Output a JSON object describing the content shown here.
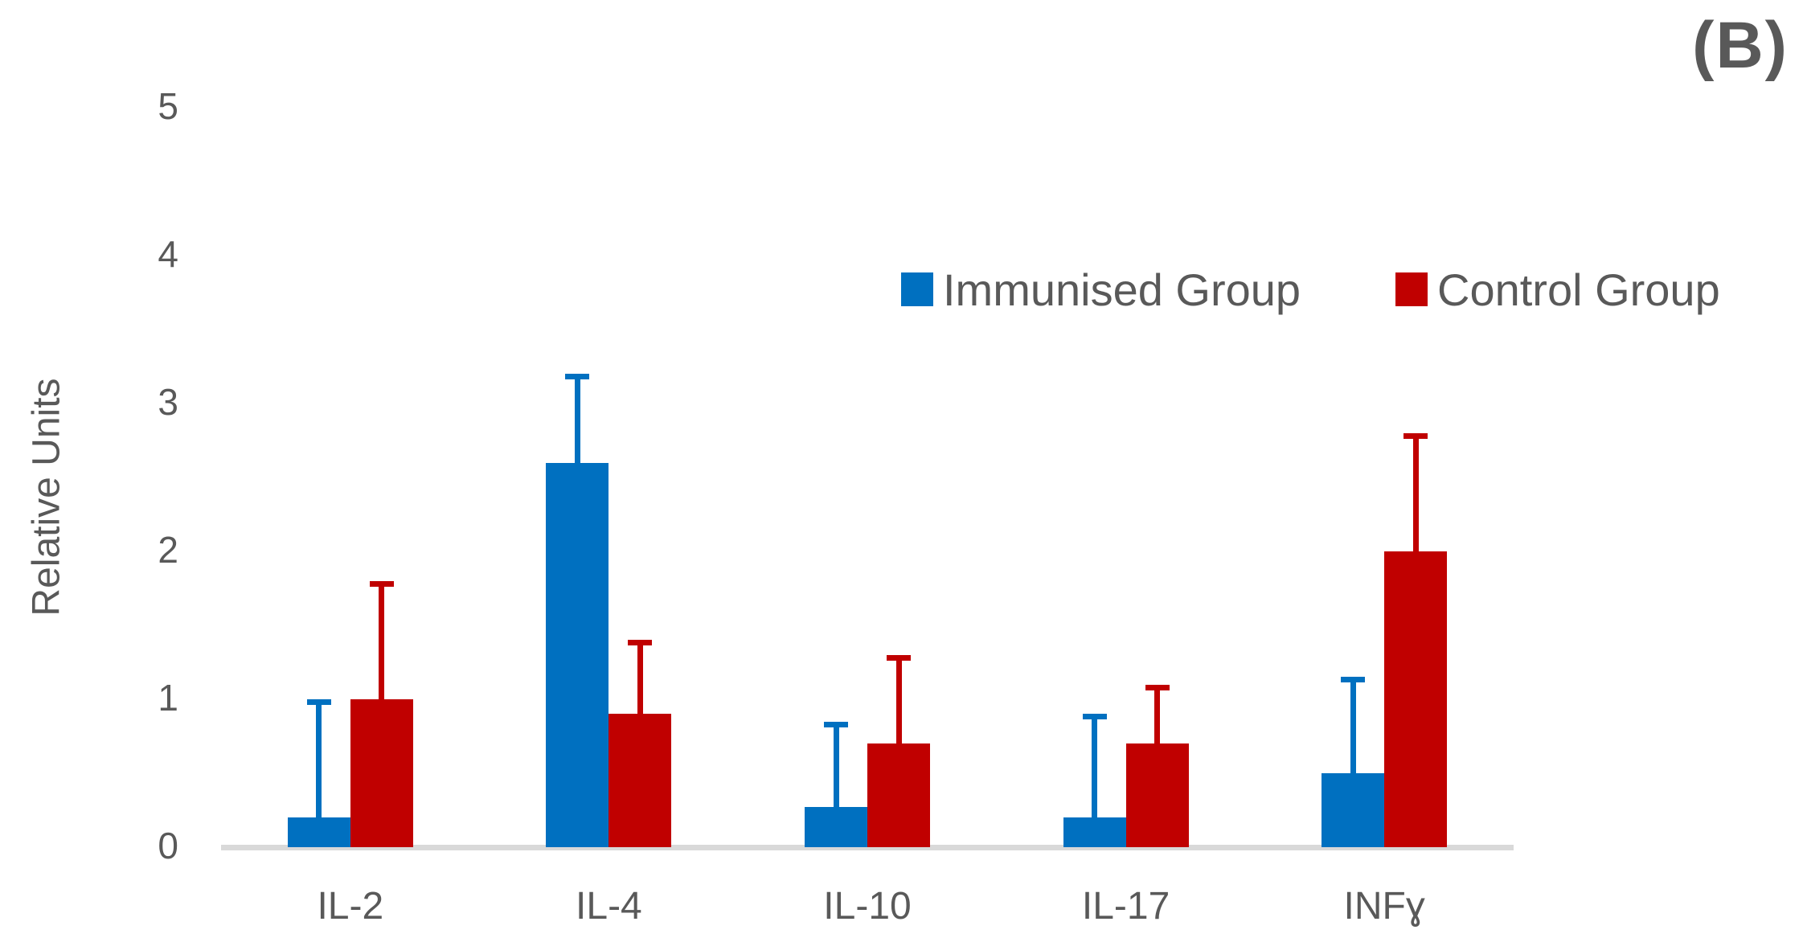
{
  "figure": {
    "panel_label": "(B)"
  },
  "chart_data": {
    "type": "bar",
    "title": "(B)",
    "xlabel": "",
    "ylabel": "Relative Units",
    "ylim": [
      0,
      5
    ],
    "yticks": [
      0,
      1,
      2,
      3,
      4,
      5
    ],
    "grid": false,
    "legend_position": "top-right-inside",
    "categories": [
      "IL-2",
      "IL-4",
      "IL-10",
      "IL-17",
      "INFɣ"
    ],
    "series": [
      {
        "name": "Immunised Group",
        "color": "#0070C0",
        "values": [
          0.2,
          2.6,
          0.27,
          0.2,
          0.5
        ],
        "error_bar_top": [
          1.0,
          3.2,
          0.85,
          0.9,
          1.15
        ]
      },
      {
        "name": "Control Group",
        "color": "#C00000",
        "values": [
          1.0,
          0.9,
          0.7,
          0.7,
          2.0
        ],
        "error_bar_top": [
          1.8,
          1.4,
          1.3,
          1.1,
          2.8
        ]
      }
    ]
  }
}
